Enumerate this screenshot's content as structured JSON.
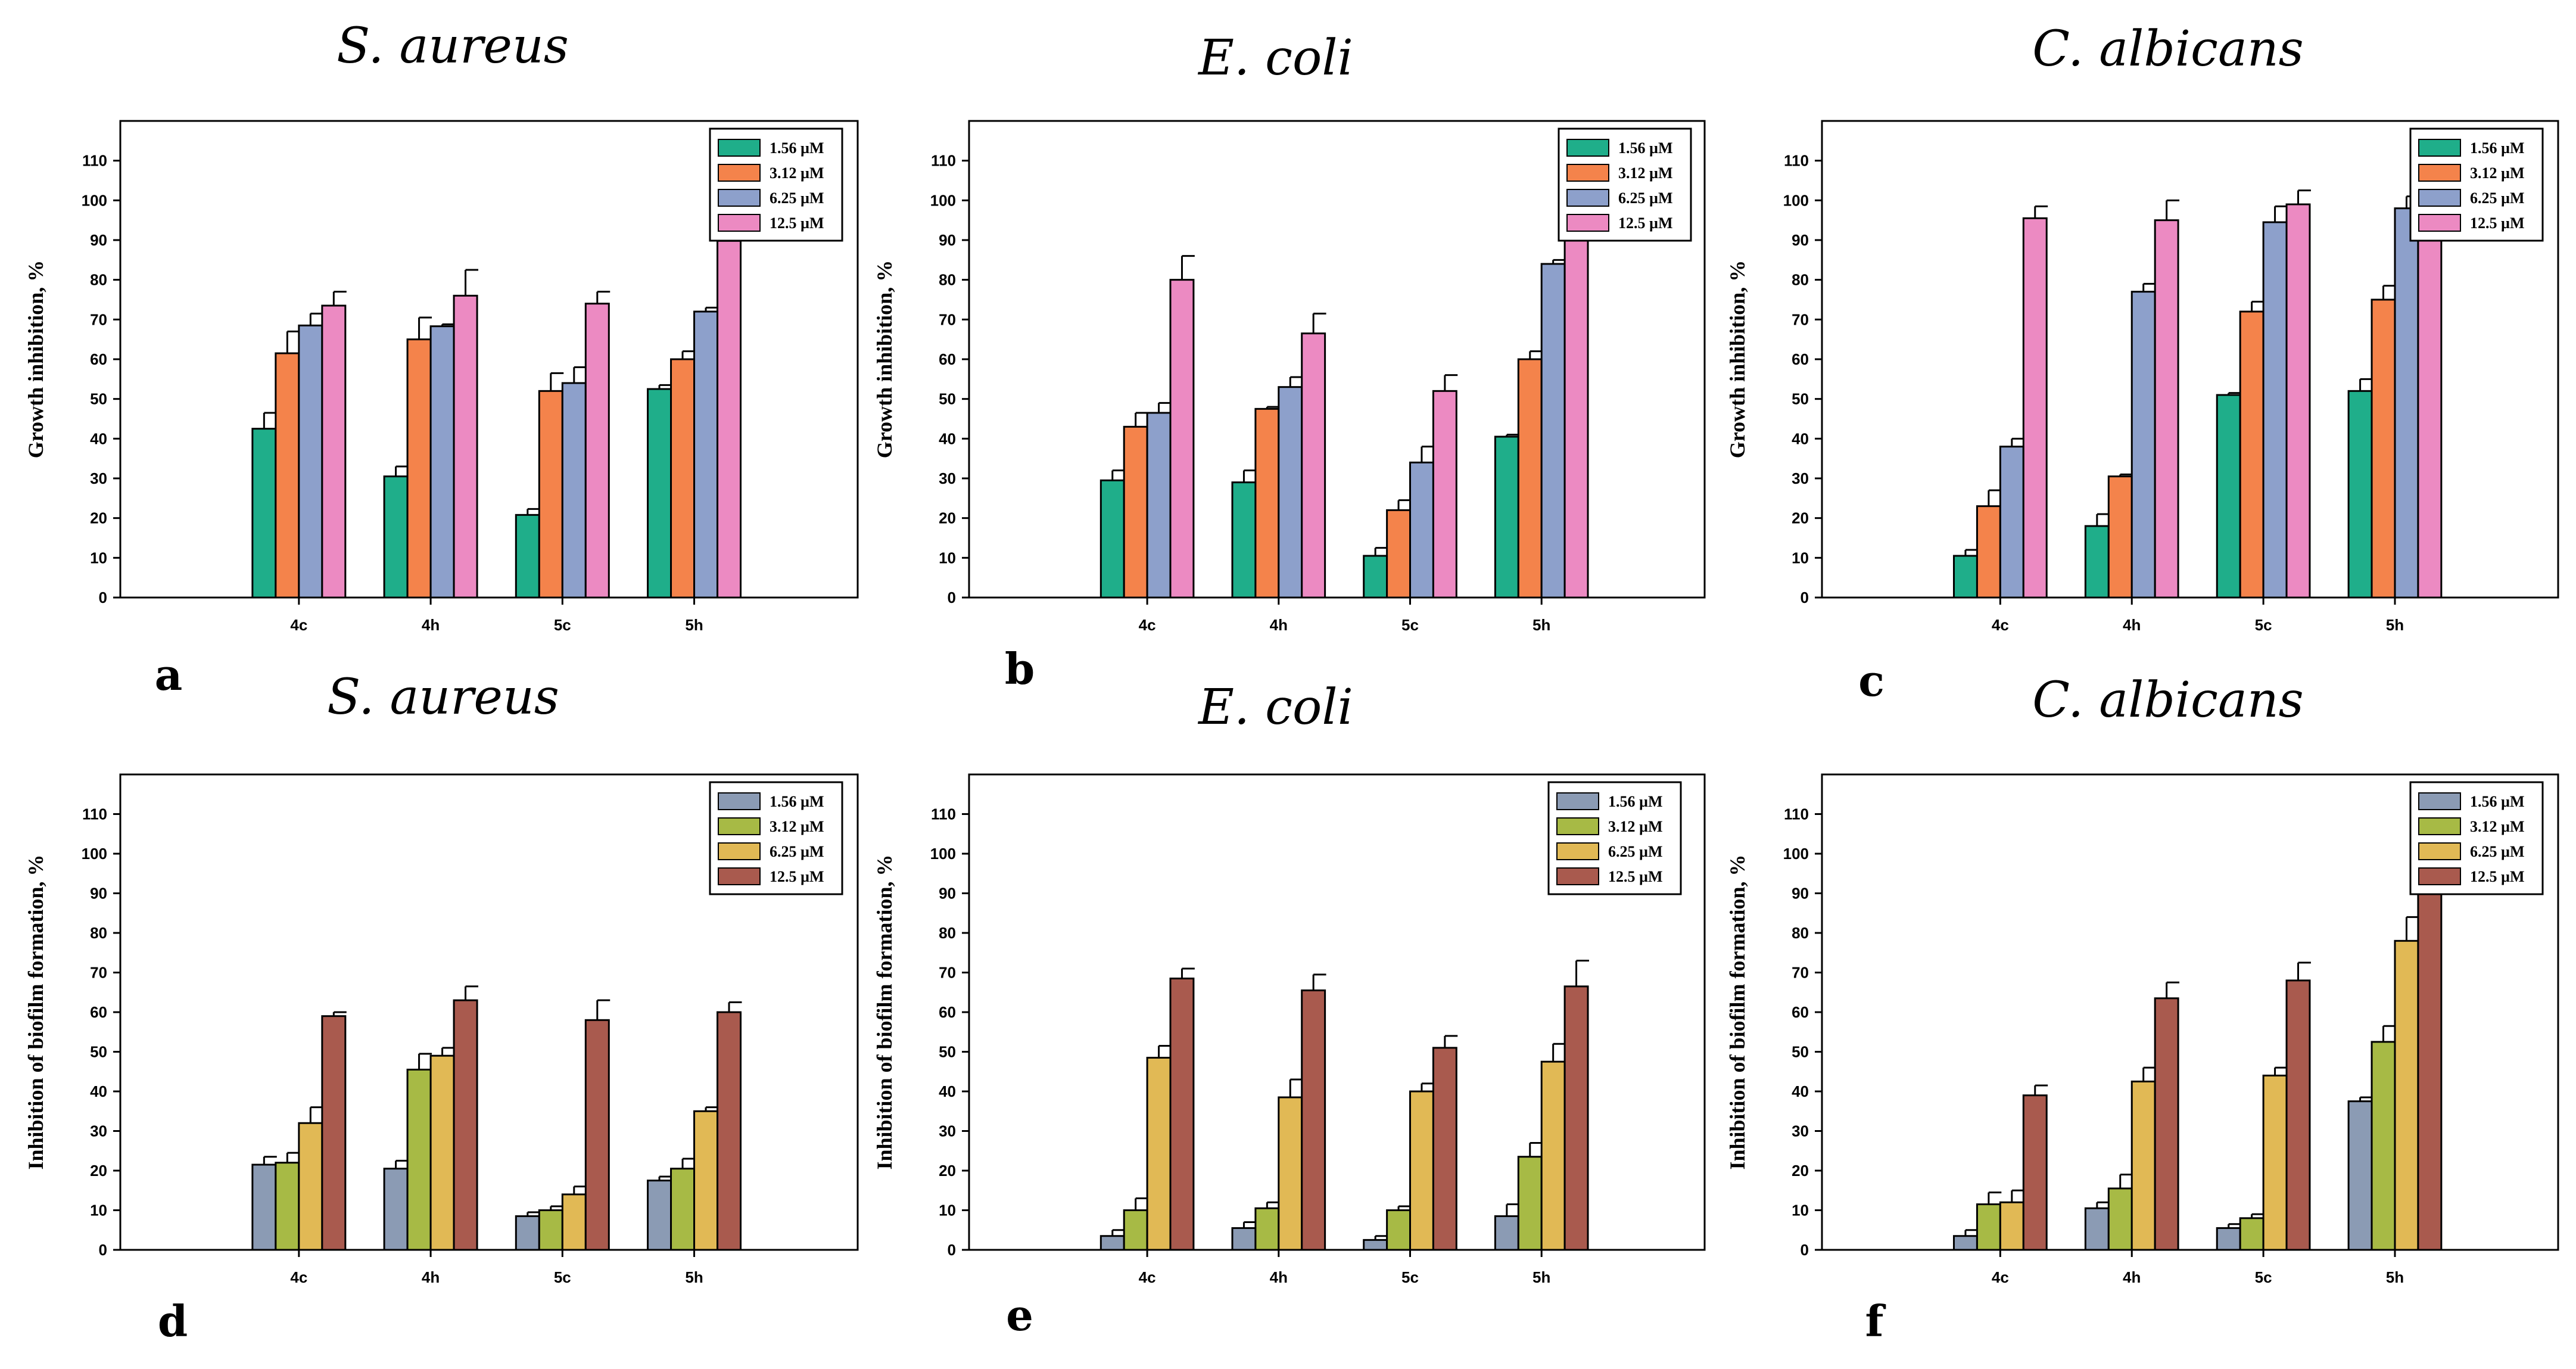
{
  "chart_data": [
    {
      "type": "bar",
      "panel": "a",
      "title": "S. aureus",
      "ylabel": "Growth inhibition, %",
      "ylim": [
        0,
        120
      ],
      "yticks": [
        "0",
        "10",
        "20",
        "30",
        "40",
        "50",
        "60",
        "70",
        "80",
        "90",
        "100",
        "110"
      ],
      "categories": [
        "4c",
        "4h",
        "5c",
        "5h"
      ],
      "series": [
        {
          "name": "1.56 µM",
          "color": "#1fae8a",
          "values": [
            42.5,
            30.5,
            20.8,
            52.5
          ],
          "errors": [
            4,
            2.5,
            1.5,
            1
          ]
        },
        {
          "name": "3.12 µM",
          "color": "#f4834b",
          "values": [
            61.5,
            65,
            52,
            60
          ],
          "errors": [
            5.5,
            5.5,
            4.5,
            2
          ]
        },
        {
          "name": "6.25 µM",
          "color": "#8da0cb",
          "values": [
            68.5,
            68.3,
            54,
            72
          ],
          "errors": [
            3,
            0.5,
            4,
            1
          ]
        },
        {
          "name": "12.5 µM",
          "color": "#ec8ac2",
          "values": [
            73.5,
            76,
            74,
            89.8
          ],
          "errors": [
            3.5,
            6.5,
            3,
            3
          ]
        }
      ]
    },
    {
      "type": "bar",
      "panel": "b",
      "title": "E. coli",
      "ylabel": "Growth inhibition, %",
      "ylim": [
        0,
        120
      ],
      "yticks": [
        "0",
        "10",
        "20",
        "30",
        "40",
        "50",
        "60",
        "70",
        "80",
        "90",
        "100",
        "110"
      ],
      "categories": [
        "4c",
        "4h",
        "5c",
        "5h"
      ],
      "series": [
        {
          "name": "1.56 µM",
          "color": "#1fae8a",
          "values": [
            29.5,
            29,
            10.5,
            40.5
          ],
          "errors": [
            2.5,
            3,
            2,
            0.5
          ]
        },
        {
          "name": "3.12 µM",
          "color": "#f4834b",
          "values": [
            43,
            47.5,
            22,
            60
          ],
          "errors": [
            3.5,
            0.5,
            2.5,
            2
          ]
        },
        {
          "name": "6.25 µM",
          "color": "#8da0cb",
          "values": [
            46.5,
            53,
            34,
            84
          ],
          "errors": [
            2.5,
            2.5,
            4,
            1
          ]
        },
        {
          "name": "12.5 µM",
          "color": "#ec8ac2",
          "values": [
            80,
            66.5,
            52,
            90
          ],
          "errors": [
            6,
            5,
            4,
            3
          ]
        }
      ]
    },
    {
      "type": "bar",
      "panel": "c",
      "title": "C. albicans",
      "ylabel": "Growth inhibition, %",
      "ylim": [
        0,
        120
      ],
      "yticks": [
        "0",
        "10",
        "20",
        "30",
        "40",
        "50",
        "60",
        "70",
        "80",
        "90",
        "100",
        "110"
      ],
      "categories": [
        "4c",
        "4h",
        "5c",
        "5h"
      ],
      "series": [
        {
          "name": "1.56 µM",
          "color": "#1fae8a",
          "values": [
            10.5,
            18,
            51,
            52
          ],
          "errors": [
            1.5,
            3,
            0.5,
            3
          ]
        },
        {
          "name": "3.12 µM",
          "color": "#f4834b",
          "values": [
            23,
            30.5,
            72,
            75
          ],
          "errors": [
            4,
            0.5,
            2.5,
            3.5
          ]
        },
        {
          "name": "6.25 µM",
          "color": "#8da0cb",
          "values": [
            38,
            77,
            94.5,
            98
          ],
          "errors": [
            2,
            2,
            4,
            3
          ]
        },
        {
          "name": "12.5 µM",
          "color": "#ec8ac2",
          "values": [
            95.5,
            95,
            99,
            98
          ],
          "errors": [
            3,
            5,
            3.5,
            1.5
          ]
        }
      ]
    },
    {
      "type": "bar",
      "panel": "d",
      "title": "S. aureus",
      "ylabel": "Inhibition of biofilm formation, %",
      "ylim": [
        0,
        120
      ],
      "yticks": [
        "0",
        "10",
        "20",
        "30",
        "40",
        "50",
        "60",
        "70",
        "80",
        "90",
        "100",
        "110"
      ],
      "categories": [
        "4c",
        "4h",
        "5c",
        "5h"
      ],
      "series": [
        {
          "name": "1.56 µM",
          "color": "#8b9bb4",
          "values": [
            21.5,
            20.5,
            8.5,
            17.5
          ],
          "errors": [
            2,
            2,
            1,
            1
          ]
        },
        {
          "name": "3.12 µM",
          "color": "#a7ba45",
          "values": [
            22,
            45.5,
            10,
            20.5
          ],
          "errors": [
            2.5,
            4,
            1,
            2.5
          ]
        },
        {
          "name": "6.25 µM",
          "color": "#e1b955",
          "values": [
            32,
            49,
            14,
            35
          ],
          "errors": [
            4,
            2,
            2,
            1
          ]
        },
        {
          "name": "12.5 µM",
          "color": "#a95a4e",
          "values": [
            59,
            63,
            58,
            60
          ],
          "errors": [
            1,
            3.5,
            5,
            2.5
          ]
        }
      ]
    },
    {
      "type": "bar",
      "panel": "e",
      "title": "E. coli",
      "ylabel": "Inhibition of biofilm formation, %",
      "ylim": [
        0,
        120
      ],
      "yticks": [
        "0",
        "10",
        "20",
        "30",
        "40",
        "50",
        "60",
        "70",
        "80",
        "90",
        "100",
        "110"
      ],
      "categories": [
        "4c",
        "4h",
        "5c",
        "5h"
      ],
      "series": [
        {
          "name": "1.56 µM",
          "color": "#8b9bb4",
          "values": [
            3.5,
            5.5,
            2.5,
            8.5
          ],
          "errors": [
            1.5,
            1.5,
            1,
            3
          ]
        },
        {
          "name": "3.12 µM",
          "color": "#a7ba45",
          "values": [
            10,
            10.5,
            10,
            23.5
          ],
          "errors": [
            3,
            1.5,
            1,
            3.5
          ]
        },
        {
          "name": "6.25 µM",
          "color": "#e1b955",
          "values": [
            48.5,
            38.5,
            40,
            47.5
          ],
          "errors": [
            3,
            4.5,
            2,
            4.5
          ]
        },
        {
          "name": "12.5 µM",
          "color": "#a95a4e",
          "values": [
            68.5,
            65.5,
            51,
            66.5
          ],
          "errors": [
            2.5,
            4,
            3,
            6.5
          ]
        }
      ]
    },
    {
      "type": "bar",
      "panel": "f",
      "title": "C. albicans",
      "ylabel": "Inhibition of biofilm formation, %",
      "ylim": [
        0,
        120
      ],
      "yticks": [
        "0",
        "10",
        "20",
        "30",
        "40",
        "50",
        "60",
        "70",
        "80",
        "90",
        "100",
        "110"
      ],
      "categories": [
        "4c",
        "4h",
        "5c",
        "5h"
      ],
      "series": [
        {
          "name": "1.56 µM",
          "color": "#8b9bb4",
          "values": [
            3.5,
            10.5,
            5.5,
            37.5
          ],
          "errors": [
            1.5,
            1.5,
            1,
            1
          ]
        },
        {
          "name": "3.12 µM",
          "color": "#a7ba45",
          "values": [
            11.5,
            15.5,
            8,
            52.5
          ],
          "errors": [
            3,
            3.5,
            1,
            4
          ]
        },
        {
          "name": "6.25 µM",
          "color": "#e1b955",
          "values": [
            12,
            42.5,
            44,
            78
          ],
          "errors": [
            3,
            3.5,
            2,
            6
          ]
        },
        {
          "name": "12.5 µM",
          "color": "#a95a4e",
          "values": [
            39,
            63.5,
            68,
            90
          ],
          "errors": [
            2.5,
            4,
            4.5,
            6.5
          ]
        }
      ]
    }
  ]
}
